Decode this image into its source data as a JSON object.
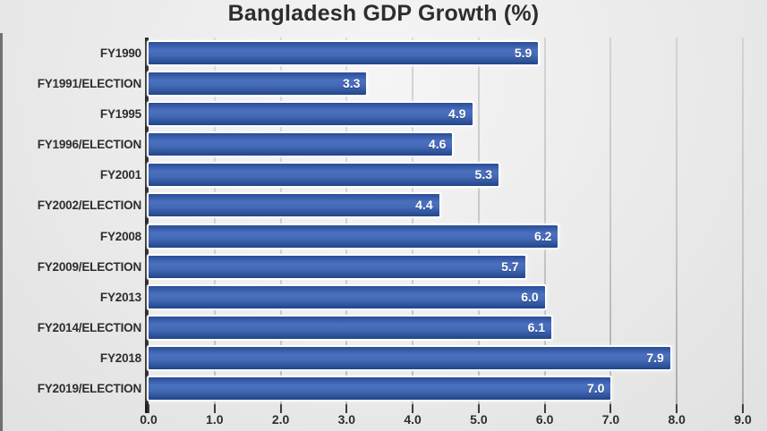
{
  "chart_data": {
    "type": "bar",
    "orientation": "horizontal",
    "title": "Bangladesh GDP Growth (%)",
    "categories": [
      "FY1990",
      "FY1991/ELECTION",
      "FY1995",
      "FY1996/ELECTION",
      "FY2001",
      "FY2002/ELECTION",
      "FY2008",
      "FY2009/ELECTION",
      "FY2013",
      "FY2014/ELECTION",
      "FY2018",
      "FY2019/ELECTION"
    ],
    "values": [
      5.9,
      3.3,
      4.9,
      4.6,
      5.3,
      4.4,
      6.2,
      5.7,
      6.0,
      6.1,
      7.9,
      7.0
    ],
    "value_labels": [
      "5.9",
      "3.3",
      "4.9",
      "4.6",
      "5.3",
      "4.4",
      "6.2",
      "5.7",
      "6.0",
      "6.1",
      "7.9",
      "7.0"
    ],
    "x_ticks": [
      "0.0",
      "1.0",
      "2.0",
      "3.0",
      "4.0",
      "5.0",
      "6.0",
      "7.0",
      "8.0",
      "9.0"
    ],
    "xlim": [
      0,
      9
    ],
    "xlabel": "",
    "ylabel": "",
    "grid": true,
    "legend": false,
    "colors": {
      "bar_gradient_top": "#2b4d97",
      "bar_gradient_mid": "#4a70bf",
      "bar_gradient_bottom": "#22448a",
      "bar_outline": "#ffffff",
      "value_text": "#ffffff",
      "label_text": "#2e2e2e",
      "title_text": "#2d2d2d",
      "axis_line": "#1e1e1e",
      "gridline": "#bdbdbd",
      "background": "#ebebeb"
    }
  }
}
